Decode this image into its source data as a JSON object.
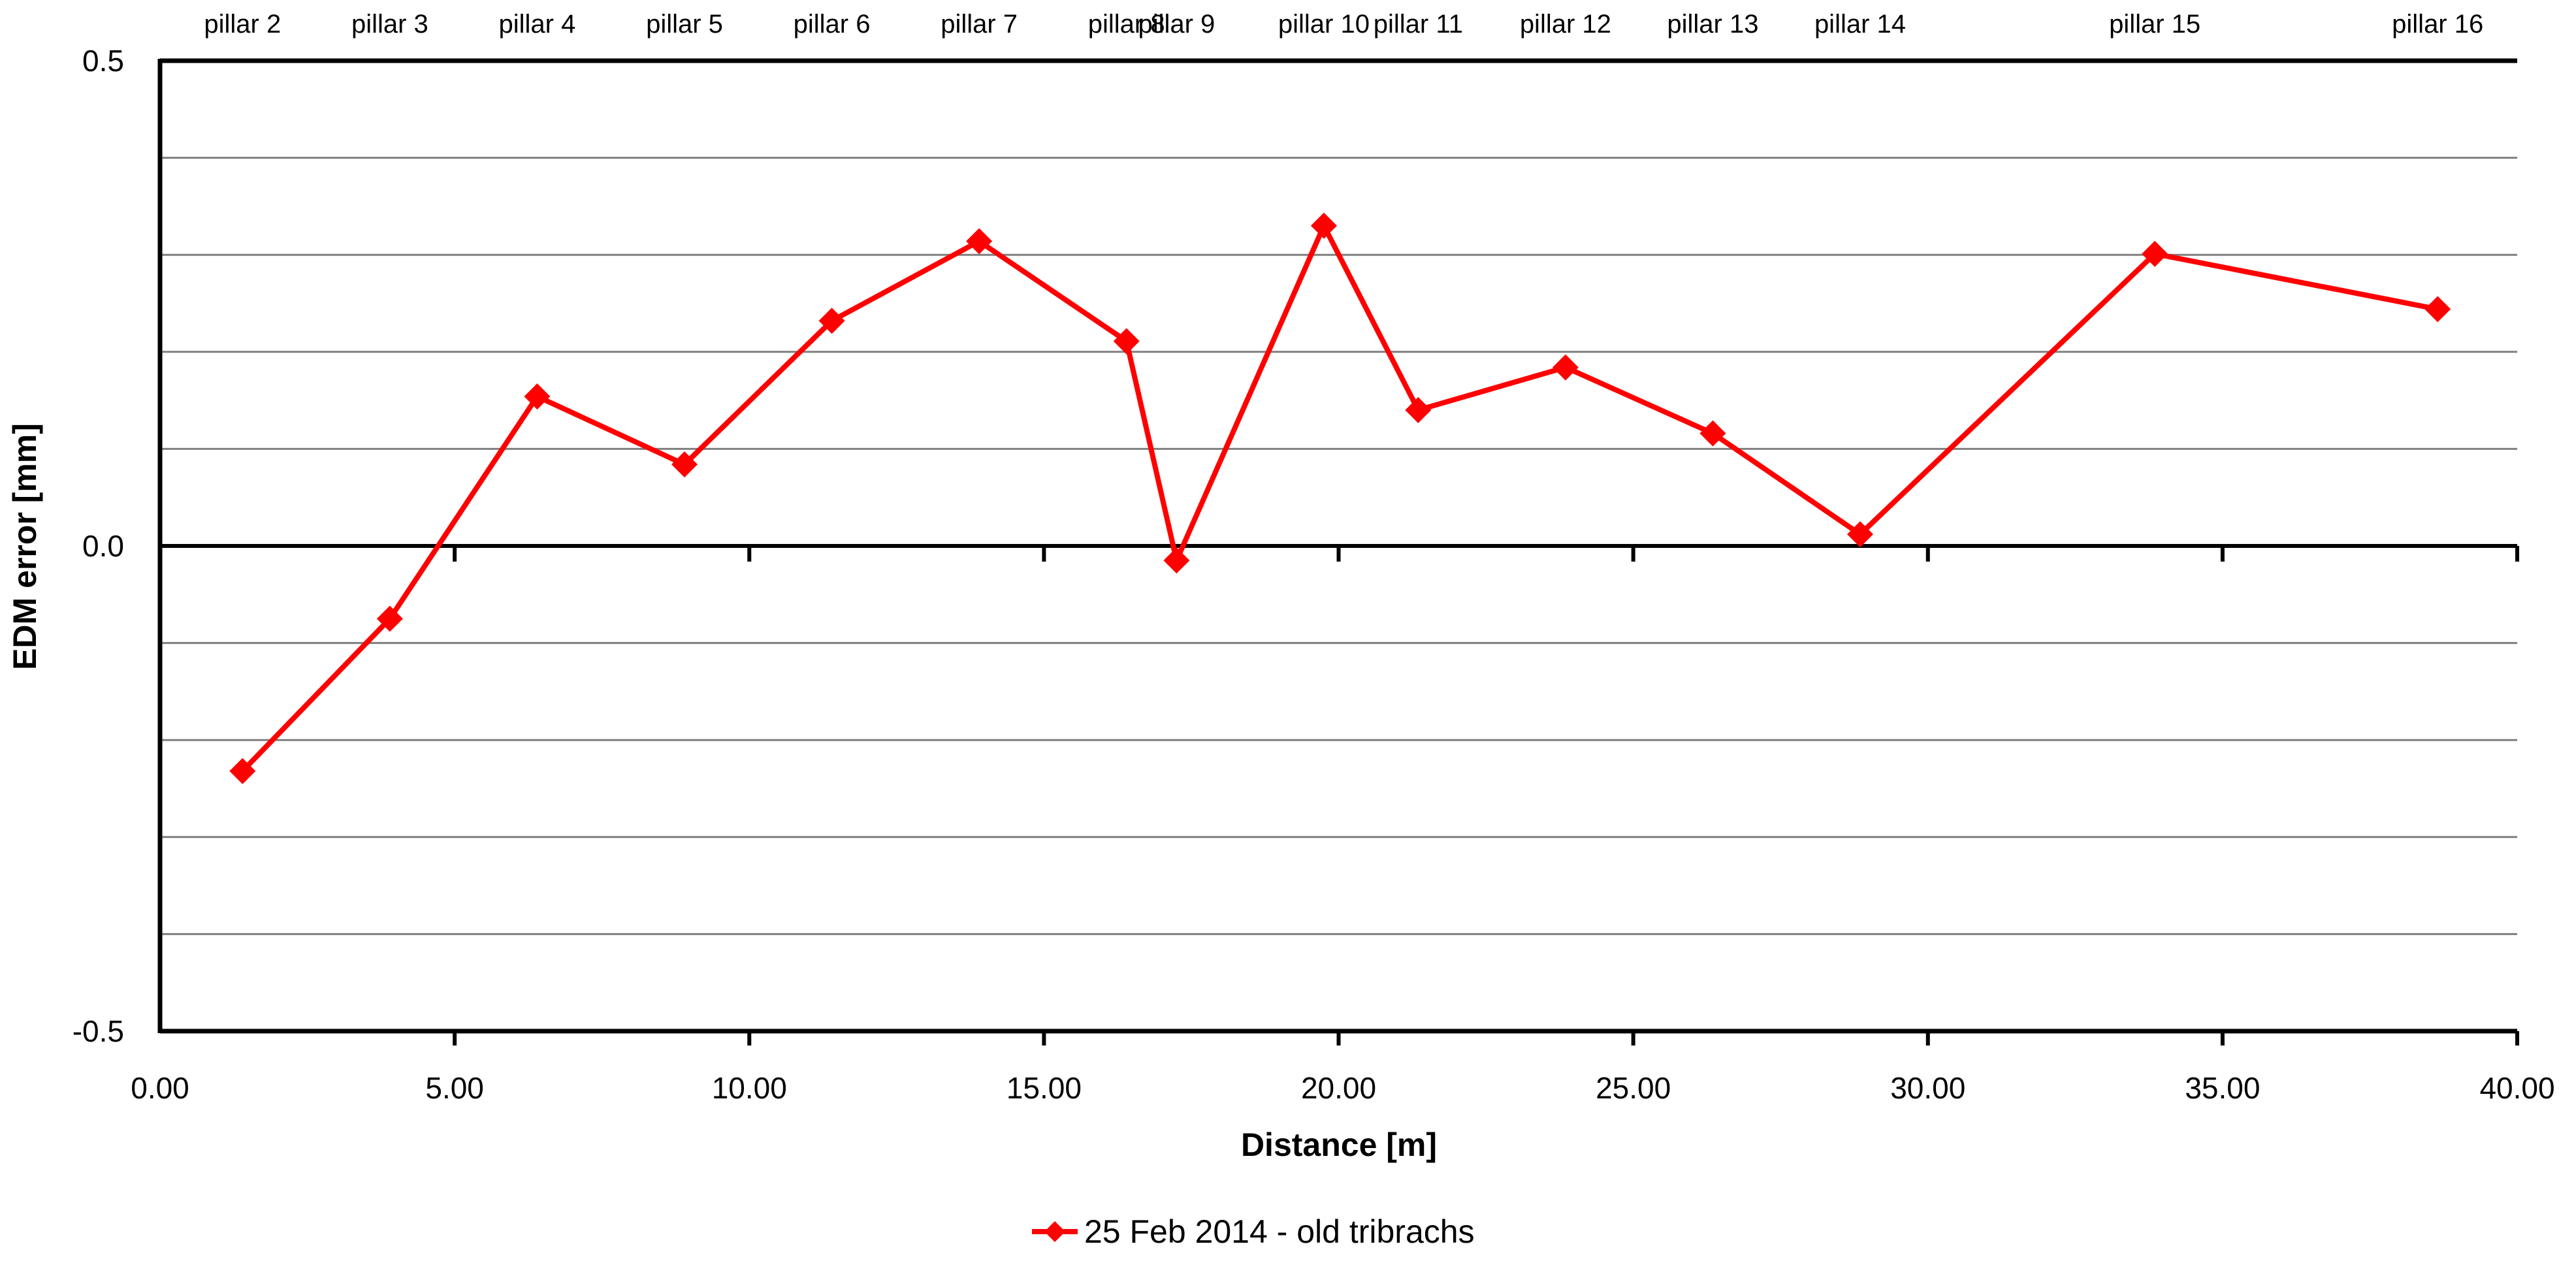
{
  "chart_data": {
    "type": "line",
    "xlabel": "Distance [m]",
    "ylabel": "EDM error [mm]",
    "xlim": [
      0,
      40
    ],
    "ylim": [
      -0.5,
      0.5
    ],
    "x_ticks": [
      "0.00",
      "5.00",
      "10.00",
      "15.00",
      "20.00",
      "25.00",
      "30.00",
      "35.00",
      "40.00"
    ],
    "y_ticks": [
      "0.5",
      "0.0",
      "-0.5"
    ],
    "grid": true,
    "legend_position": "bottom",
    "series": [
      {
        "name": "25 Feb 2014 - old tribrachs",
        "color": "#ff0000",
        "marker": "diamond",
        "points": [
          {
            "label": "pillar 2",
            "x": 1.4,
            "y": -0.232
          },
          {
            "label": "pillar 3",
            "x": 3.9,
            "y": -0.075
          },
          {
            "label": "pillar 4",
            "x": 6.4,
            "y": 0.154
          },
          {
            "label": "pillar 5",
            "x": 8.9,
            "y": 0.084
          },
          {
            "label": "pillar 6",
            "x": 11.4,
            "y": 0.232
          },
          {
            "label": "pillar 7",
            "x": 13.9,
            "y": 0.314
          },
          {
            "label": "pillar 8",
            "x": 16.4,
            "y": 0.211
          },
          {
            "label": "pillar 9",
            "x": 17.25,
            "y": -0.015
          },
          {
            "label": "pillar 10",
            "x": 19.75,
            "y": 0.33
          },
          {
            "label": "pillar 11",
            "x": 21.35,
            "y": 0.14
          },
          {
            "label": "pillar 12",
            "x": 23.85,
            "y": 0.184
          },
          {
            "label": "pillar 13",
            "x": 26.35,
            "y": 0.116
          },
          {
            "label": "pillar 14",
            "x": 28.85,
            "y": 0.012
          },
          {
            "label": "pillar 15",
            "x": 33.85,
            "y": 0.301
          },
          {
            "label": "pillar 16",
            "x": 38.65,
            "y": 0.244
          }
        ]
      }
    ]
  }
}
